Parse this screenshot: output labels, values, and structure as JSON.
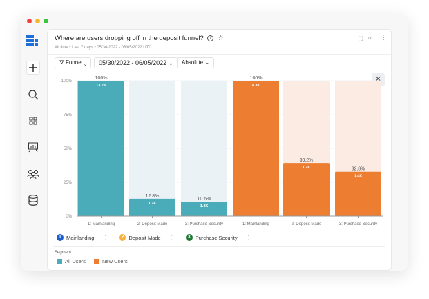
{
  "header": {
    "title": "Where are users dropping off in the deposit funnel?",
    "subtitle": "All time • Last 7 days • 05/30/2022 - 06/05/2022 UTC"
  },
  "controls": {
    "chart_type": "Funnel",
    "date_range": "05/30/2022 - 06/05/2022",
    "mode": "Absolute"
  },
  "sidebar": {
    "items": [
      "logo",
      "create",
      "search",
      "apps",
      "dashboards",
      "users",
      "data"
    ]
  },
  "steps": [
    {
      "n": "1",
      "label": "Mainlanding",
      "color": "#1e5fd0"
    },
    {
      "n": "2",
      "label": "Deposit Made",
      "color": "#f5b041"
    },
    {
      "n": "3",
      "label": "Purchase Security",
      "color": "#1e7a32"
    }
  ],
  "segment": {
    "title": "Segment",
    "items": [
      {
        "label": "All Users",
        "color": "#4aabb9"
      },
      {
        "label": "New Users",
        "color": "#ed7d31"
      }
    ]
  },
  "chart_data": {
    "type": "bar",
    "categories": [
      "1: Mainlanding",
      "2: Deposit Made",
      "3: Purchase Security",
      "1: Mainlanding",
      "2: Deposit Made",
      "3: Purchase Security"
    ],
    "series": [
      {
        "name": "All Users",
        "color": "#4aabb9",
        "bg": "#eaf2f6",
        "percent": [
          100,
          12.8,
          10.6
        ],
        "percent_labels": [
          "100%",
          "12.8%",
          "10.6%"
        ],
        "counts": [
          "13.2K",
          "1.7K",
          "1.4K"
        ]
      },
      {
        "name": "New Users",
        "color": "#ed7d31",
        "bg": "#fcebe3",
        "percent": [
          100,
          39.2,
          32.8
        ],
        "percent_labels": [
          "100%",
          "39.2%",
          "32.8%"
        ],
        "counts": [
          "4.3K",
          "1.7K",
          "1.4K"
        ]
      }
    ],
    "yticks": [
      "0%",
      "25%",
      "50%",
      "75%",
      "100%"
    ],
    "ylim": [
      0,
      100
    ],
    "grid": true
  }
}
